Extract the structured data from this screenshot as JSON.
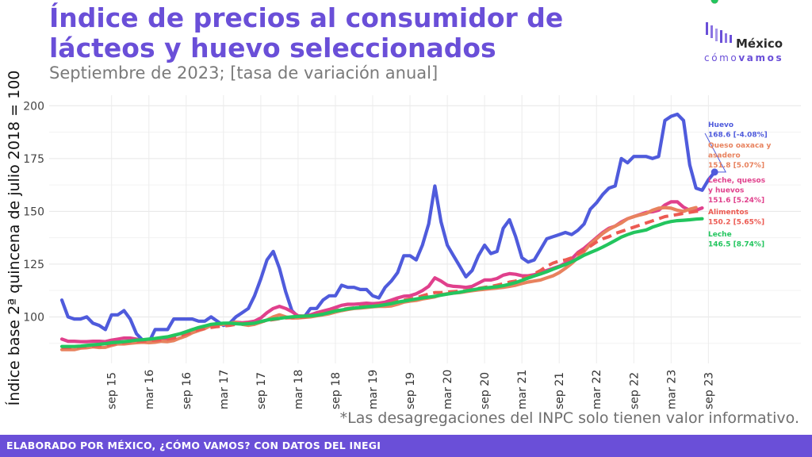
{
  "header": {
    "title": "Índice de precios al consumidor de lácteos y huevo seleccionados",
    "subtitle": "Septiembre de 2023; [tasa de variación anual]"
  },
  "logo": {
    "main": "México",
    "sub_light": "cómo",
    "sub_bold": "vamos"
  },
  "note": "*Las desagregaciones del INPC solo tienen valor informativo.",
  "footer": {
    "text": "ELABORADO POR MÉXICO, ¿CÓMO VAMOS? CON DATOS DEL INEGI"
  },
  "colors": {
    "accent": "#6a4fd8",
    "footer_bg": "#6a4fd8"
  },
  "chart_data": {
    "type": "line",
    "ylabel": "Índice base 2ª quincena de julio 2018 = 100",
    "xlabel": "",
    "ylim": [
      78,
      205
    ],
    "yticks": [
      100,
      125,
      150,
      175,
      200
    ],
    "grid": true,
    "x_start": "2015-01",
    "x_step": "month",
    "xtick_labels": [
      "sep 15",
      "mar 16",
      "sep 16",
      "mar 17",
      "sep 17",
      "mar 18",
      "sep 18",
      "mar 19",
      "sep 19",
      "mar 20",
      "sep 20",
      "mar 21",
      "sep 21",
      "mar 22",
      "sep 22",
      "mar 23",
      "sep 23"
    ],
    "xtick_months": [
      "2015-09",
      "2016-03",
      "2016-09",
      "2017-03",
      "2017-09",
      "2018-03",
      "2018-09",
      "2019-03",
      "2019-09",
      "2020-03",
      "2020-09",
      "2021-03",
      "2021-09",
      "2022-03",
      "2022-09",
      "2023-03",
      "2023-09"
    ],
    "series": [
      {
        "name": "Huevo",
        "color": "#4f5bdc",
        "dash": false,
        "label_lines": [
          "Huevo",
          "168.6 [-4.08%]"
        ],
        "values": [
          108,
          100,
          99,
          99,
          100,
          97,
          96,
          94,
          101,
          101,
          103,
          99,
          92,
          89,
          88,
          94,
          94,
          94,
          99,
          99,
          99,
          99,
          98,
          98,
          100,
          98,
          96,
          97,
          100,
          102,
          104,
          110,
          118,
          127,
          131,
          123,
          112,
          103,
          100,
          100,
          104,
          104,
          108,
          110,
          110,
          115,
          114,
          114,
          113,
          113,
          110,
          109,
          114,
          117,
          121,
          129,
          129,
          127,
          134,
          144,
          162,
          145,
          134,
          129,
          124,
          119,
          122,
          129,
          134,
          130,
          131,
          142,
          146,
          138,
          128,
          126,
          127,
          132,
          137,
          138,
          139,
          140,
          139,
          141,
          144,
          151,
          154,
          158,
          161,
          162,
          175,
          173,
          176,
          176,
          176,
          175,
          176,
          193,
          195,
          196,
          193,
          172,
          161,
          160,
          165,
          168.6
        ]
      },
      {
        "name": "Queso oaxaca y asadero",
        "color": "#e8825e",
        "dash": false,
        "label_lines": [
          "Queso oaxaca y",
          "asadero",
          "151.8 [5.07%]"
        ],
        "values": [
          84.5,
          84.5,
          84.5,
          85.2,
          85.4,
          85.8,
          85.5,
          85.6,
          86.5,
          87.2,
          87.2,
          87.5,
          87.8,
          88,
          87.8,
          88,
          88.5,
          88.3,
          88.8,
          90,
          91,
          92.5,
          93.5,
          94.5,
          96,
          96.5,
          96.5,
          97,
          97.5,
          96.5,
          96,
          96.5,
          97.5,
          98.5,
          100,
          101,
          100,
          99.5,
          99.5,
          99.8,
          100,
          100.5,
          101,
          101.5,
          102.3,
          103,
          103.5,
          104,
          104.2,
          104.5,
          104.8,
          105,
          105,
          105.2,
          106,
          107,
          107.5,
          107.8,
          108.5,
          109,
          109.5,
          110.5,
          111,
          111.3,
          111.5,
          112,
          112.4,
          112.8,
          113.1,
          113.4,
          113.7,
          114,
          114.5,
          115,
          115.8,
          116.5,
          117,
          117.5,
          118.5,
          119.5,
          121,
          123,
          125.3,
          128,
          131,
          134.5,
          137,
          139.5,
          141.5,
          143,
          144.5,
          146.5,
          147.5,
          148.3,
          149,
          150.5,
          151.5,
          151.8,
          151.5,
          150.5,
          150,
          151,
          151.8
        ]
      },
      {
        "name": "Leche, quesos y huevos",
        "color": "#e0408c",
        "dash": false,
        "label_lines": [
          "Leche, quesos",
          "y huevos",
          "151.6 [5.24%]"
        ],
        "values": [
          89.5,
          88.5,
          88.5,
          88.3,
          88.3,
          88.5,
          88.5,
          88.3,
          89,
          89.5,
          90,
          90,
          89.5,
          88.5,
          88.6,
          89,
          89.5,
          89.8,
          91,
          92,
          93,
          94,
          94.5,
          95,
          96,
          96.5,
          96.5,
          97,
          97.5,
          97.2,
          97.5,
          98,
          99.5,
          102,
          104,
          105,
          104,
          102.5,
          100.5,
          100.4,
          101,
          102,
          102.8,
          103.5,
          104.5,
          105.5,
          106,
          106,
          106.2,
          106.5,
          106.3,
          106.5,
          107,
          108,
          109,
          109.8,
          110,
          111,
          112.5,
          114.5,
          118.5,
          117,
          115,
          114.5,
          114.3,
          114,
          114.5,
          116,
          117.5,
          117.5,
          118.2,
          119.8,
          120.5,
          120.2,
          119.5,
          119.5,
          120,
          121,
          122,
          123,
          124,
          125.5,
          127.5,
          130.5,
          132.5,
          135,
          137.5,
          140,
          142,
          143,
          145,
          146.5,
          147.5,
          148.5,
          149.5,
          149.8,
          150.5,
          153,
          154.5,
          154.5,
          152,
          150.5,
          150.5,
          151.6
        ]
      },
      {
        "name": "Alimentos",
        "color": "#ec5a52",
        "dash": true,
        "label_lines": [
          "Alimentos",
          "150.2 [5.65%]"
        ],
        "values": [
          85.5,
          85.5,
          85.6,
          85.8,
          86,
          86.2,
          86.3,
          86.5,
          87,
          87.5,
          87.8,
          88.3,
          88.5,
          88.5,
          88.8,
          89,
          89.2,
          89.5,
          90,
          91,
          92,
          93,
          94,
          94.5,
          95,
          95.4,
          95.7,
          96,
          96.5,
          96.8,
          97,
          97.2,
          97.7,
          98.3,
          98.7,
          99.2,
          99.5,
          99.6,
          99.7,
          100,
          100.5,
          101,
          101.8,
          102.5,
          103,
          103.5,
          104,
          104.3,
          104.8,
          105,
          105.3,
          105.6,
          106,
          106.6,
          107.5,
          108,
          108.5,
          109,
          110,
          110.8,
          111.5,
          111.5,
          111.8,
          112,
          112.2,
          112.5,
          113,
          113.5,
          114,
          114.5,
          115,
          115.7,
          116.5,
          117,
          118,
          119,
          120.5,
          122,
          124,
          125.5,
          126.5,
          127,
          128,
          130,
          131.5,
          133.5,
          135.5,
          137,
          138,
          139.5,
          140.5,
          141.5,
          142.5,
          143.5,
          144.5,
          145.5,
          146.5,
          147.5,
          148,
          148.5,
          149,
          149.5,
          150,
          150.2
        ]
      },
      {
        "name": "Leche",
        "color": "#22c55e",
        "dash": false,
        "label_lines": [
          "Leche",
          "146.5 [8.74%]"
        ],
        "values": [
          86,
          86,
          86,
          86.2,
          86.5,
          86.8,
          87,
          87.3,
          87.8,
          88,
          88.3,
          88.6,
          89,
          89.2,
          89.5,
          89.8,
          90.2,
          90.6,
          91.3,
          92,
          93,
          94,
          95,
          95.7,
          96.5,
          96.8,
          97,
          97.1,
          96.8,
          96.6,
          96.8,
          97,
          97.8,
          98.5,
          99,
          99.3,
          99.7,
          100,
          100.2,
          100.4,
          100.5,
          100.8,
          101.3,
          102,
          102.8,
          103.3,
          103.8,
          104.2,
          104.5,
          104.8,
          105,
          105.3,
          105.8,
          106.3,
          107,
          107.5,
          108,
          108.5,
          109,
          109.4,
          109.8,
          110.3,
          110.8,
          111.3,
          111.7,
          112.3,
          112.8,
          113.3,
          113.7,
          114,
          114.3,
          114.8,
          115.5,
          116.3,
          117.3,
          118.4,
          119.4,
          120.4,
          121.4,
          122.6,
          123.7,
          124.8,
          126.1,
          127.6,
          129.2,
          130.5,
          131.7,
          133.1,
          134.6,
          136.2,
          137.8,
          139,
          140,
          140.6,
          141.2,
          142.5,
          143.5,
          144.5,
          145.2,
          145.6,
          145.8,
          146,
          146.3,
          146.5
        ]
      }
    ]
  }
}
